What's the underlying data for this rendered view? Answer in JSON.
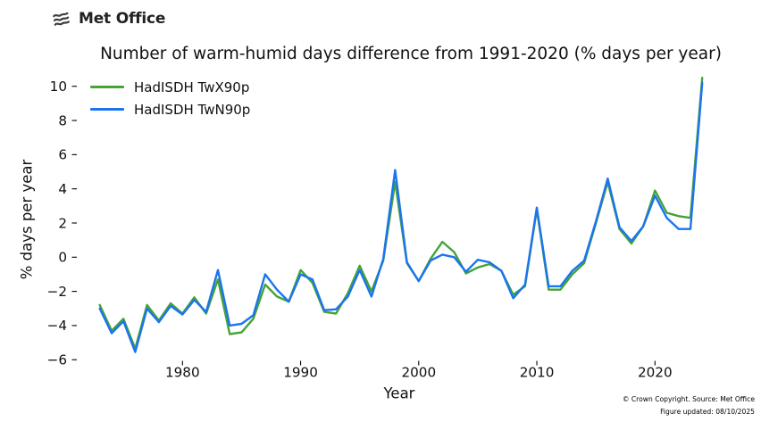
{
  "header": {
    "logo_text": "Met Office",
    "logo_icon": "met-office-waves"
  },
  "title": "Number of warm-humid days difference from 1991-2020 (% days per year)",
  "legend": {
    "items": [
      {
        "label": "HadISDH TwX90p",
        "color": "#46a335"
      },
      {
        "label": "HadISDH TwN90p",
        "color": "#1b74f0"
      }
    ]
  },
  "axes": {
    "x_label": "Year",
    "y_label": "% days per year",
    "x_ticks": [
      1980,
      1990,
      2000,
      2010,
      2020
    ],
    "y_ticks": [
      10,
      8,
      6,
      4,
      2,
      0,
      -2,
      -4,
      -6
    ]
  },
  "footer": {
    "line1": "© Crown Copyright. Source: Met Office",
    "line2": "Figure updated: 08/10/2025"
  },
  "colors": {
    "series_green": "#46a335",
    "series_blue": "#1b74f0",
    "text": "#111111",
    "tick": "#000000"
  },
  "chart_data": {
    "type": "line",
    "title": "Number of warm-humid days difference from 1991-2020 (% days per year)",
    "xlabel": "Year",
    "ylabel": "% days per year",
    "xlim": [
      1971.7,
      2025.2
    ],
    "ylim": [
      -6.5,
      10.8
    ],
    "grid": false,
    "legend_position": "upper-left",
    "x": [
      1973,
      1974,
      1975,
      1976,
      1977,
      1978,
      1979,
      1980,
      1981,
      1982,
      1983,
      1984,
      1985,
      1986,
      1987,
      1988,
      1989,
      1990,
      1991,
      1992,
      1993,
      1994,
      1995,
      1996,
      1997,
      1998,
      1999,
      2000,
      2001,
      2002,
      2003,
      2004,
      2005,
      2006,
      2007,
      2008,
      2009,
      2010,
      2011,
      2012,
      2013,
      2014,
      2015,
      2016,
      2017,
      2018,
      2019,
      2020,
      2021,
      2022,
      2023,
      2024
    ],
    "series": [
      {
        "name": "HadISDH TwX90p",
        "color": "#46a335",
        "values": [
          -2.8,
          -4.3,
          -3.6,
          -5.35,
          -2.8,
          -3.7,
          -2.7,
          -3.3,
          -2.35,
          -3.3,
          -1.3,
          -4.5,
          -4.4,
          -3.6,
          -1.6,
          -2.3,
          -2.6,
          -0.75,
          -1.5,
          -3.2,
          -3.3,
          -2.1,
          -0.5,
          -2.0,
          -0.2,
          4.4,
          -0.35,
          -1.4,
          -0.1,
          0.9,
          0.3,
          -0.95,
          -0.6,
          -0.4,
          -0.8,
          -2.2,
          -1.7,
          2.8,
          -1.9,
          -1.9,
          -1.0,
          -0.35,
          2.0,
          4.4,
          1.65,
          0.8,
          1.8,
          3.9,
          2.6,
          2.4,
          2.3,
          10.5
        ]
      },
      {
        "name": "HadISDH TwN90p",
        "color": "#1b74f0",
        "values": [
          -3.0,
          -4.45,
          -3.75,
          -5.55,
          -3.0,
          -3.8,
          -2.85,
          -3.35,
          -2.5,
          -3.2,
          -0.75,
          -4.0,
          -3.9,
          -3.4,
          -1.0,
          -1.9,
          -2.6,
          -1.0,
          -1.3,
          -3.1,
          -3.05,
          -2.3,
          -0.75,
          -2.3,
          -0.1,
          5.1,
          -0.3,
          -1.4,
          -0.2,
          0.15,
          0.0,
          -0.85,
          -0.15,
          -0.3,
          -0.8,
          -2.4,
          -1.6,
          2.9,
          -1.7,
          -1.7,
          -0.8,
          -0.2,
          2.1,
          4.6,
          1.75,
          0.95,
          1.8,
          3.6,
          2.3,
          1.65,
          1.65,
          10.2
        ]
      }
    ]
  }
}
